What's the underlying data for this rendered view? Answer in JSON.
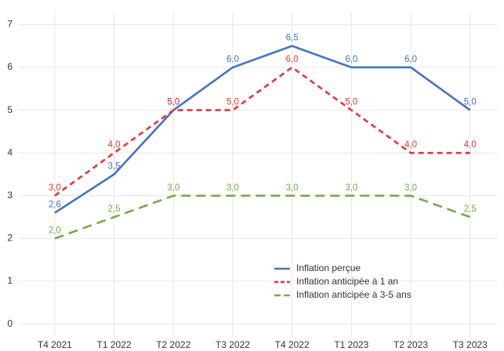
{
  "chart_data": {
    "type": "line",
    "categories": [
      "T4 2021",
      "T1 2022",
      "T2 2022",
      "T3 2022",
      "T4 2022",
      "T1 2023",
      "T2 2023",
      "T3 2023"
    ],
    "series": [
      {
        "name": "Inflation perçue",
        "color": "#4472c4",
        "dash": "solid",
        "values": [
          2.6,
          3.5,
          5.0,
          6.0,
          6.5,
          6.0,
          6.0,
          5.0
        ],
        "value_labels": [
          "2,6",
          "3,5",
          "5,0",
          "6,0",
          "6,5",
          "6,0",
          "6,0",
          "5,0"
        ]
      },
      {
        "name": "Inflation anticipée à 1 an",
        "color": "#ee3333",
        "dash": "dashed",
        "values": [
          3.0,
          4.0,
          5.0,
          5.0,
          6.0,
          5.0,
          4.0,
          4.0
        ],
        "value_labels": [
          "3,0",
          "4,0",
          "5,0",
          "5,0",
          "6,0",
          "5,0",
          "4,0",
          "4,0"
        ]
      },
      {
        "name": "Inflation anticipée à 3-5 ans",
        "color": "#70ad47",
        "dash": "longdash",
        "values": [
          2.0,
          2.5,
          3.0,
          3.0,
          3.0,
          3.0,
          3.0,
          2.5
        ],
        "value_labels": [
          "2,0",
          "2,5",
          "3,0",
          "3,0",
          "3,0",
          "3,0",
          "3,0",
          "2,5"
        ]
      }
    ],
    "ylim": [
      -0.3,
      7.3
    ],
    "yticks": [
      0,
      1,
      2,
      3,
      4,
      5,
      6,
      7
    ],
    "grid": true,
    "legend": "lower right"
  }
}
